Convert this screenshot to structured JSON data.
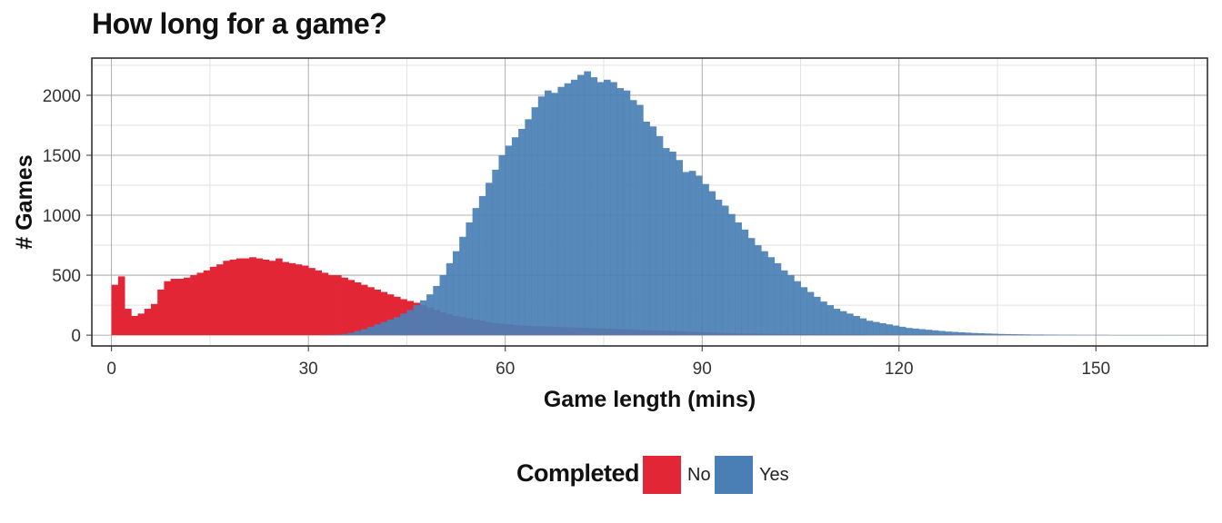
{
  "chart_data": {
    "type": "histogram",
    "title": "How long for a game?",
    "xlabel": "Game length (mins)",
    "ylabel": "# Games",
    "xlim": [
      -3,
      167
    ],
    "ylim": [
      -90,
      2310
    ],
    "x_ticks": [
      0,
      30,
      60,
      90,
      120,
      150
    ],
    "y_ticks": [
      0,
      500,
      1000,
      1500,
      2000
    ],
    "bin_width": 1,
    "grid": true,
    "legend": {
      "title": "Completed",
      "position": "bottom"
    },
    "series": [
      {
        "name": "No",
        "color": "#e32636",
        "x_start": 0,
        "values": [
          420,
          490,
          220,
          160,
          180,
          220,
          260,
          380,
          450,
          470,
          470,
          480,
          500,
          520,
          540,
          570,
          590,
          620,
          630,
          640,
          640,
          650,
          640,
          630,
          620,
          640,
          610,
          600,
          590,
          580,
          560,
          540,
          520,
          500,
          500,
          480,
          460,
          440,
          420,
          400,
          380,
          360,
          340,
          320,
          300,
          285,
          270,
          250,
          230,
          210,
          190,
          175,
          160,
          150,
          140,
          130,
          120,
          110,
          100,
          95,
          90,
          85,
          80,
          78,
          76,
          74,
          72,
          70,
          68,
          66,
          64,
          62,
          60,
          58,
          56,
          54,
          52,
          50,
          48,
          46,
          44,
          42,
          40,
          38,
          36,
          34,
          32,
          30,
          28,
          26,
          24,
          22,
          20,
          18,
          17,
          16,
          15,
          14,
          13,
          12,
          11,
          10,
          10,
          9,
          9,
          8,
          8,
          7,
          7,
          6,
          6,
          6,
          5,
          5,
          5,
          4,
          4,
          4,
          3,
          3,
          3,
          3,
          2,
          2,
          2,
          2,
          2,
          2,
          1,
          1,
          1,
          1,
          1,
          1,
          1,
          1,
          1,
          1,
          1,
          1,
          1,
          1,
          0,
          0,
          0,
          0,
          0,
          0,
          0,
          0,
          0,
          0,
          0,
          0,
          0,
          0,
          0,
          0,
          0,
          0,
          0,
          0,
          0,
          0,
          0,
          0
        ]
      },
      {
        "name": "Yes",
        "color": "#4a7fb5",
        "x_start": 0,
        "values": [
          0,
          0,
          0,
          0,
          0,
          0,
          0,
          0,
          0,
          0,
          0,
          0,
          0,
          0,
          0,
          0,
          0,
          0,
          0,
          0,
          0,
          0,
          0,
          0,
          0,
          0,
          0,
          0,
          0,
          0,
          0,
          0,
          2,
          3,
          5,
          10,
          20,
          35,
          50,
          70,
          90,
          110,
          130,
          150,
          180,
          210,
          250,
          290,
          340,
          410,
          500,
          600,
          700,
          820,
          940,
          1060,
          1160,
          1270,
          1380,
          1500,
          1580,
          1650,
          1720,
          1800,
          1900,
          1990,
          2040,
          2020,
          2070,
          2100,
          2130,
          2170,
          2200,
          2150,
          2110,
          2130,
          2110,
          2060,
          2040,
          1960,
          1920,
          1780,
          1740,
          1660,
          1560,
          1530,
          1460,
          1360,
          1370,
          1330,
          1260,
          1200,
          1130,
          1080,
          1010,
          940,
          880,
          810,
          750,
          700,
          650,
          600,
          540,
          500,
          450,
          400,
          360,
          320,
          280,
          250,
          220,
          200,
          180,
          160,
          140,
          120,
          110,
          100,
          90,
          80,
          70,
          60,
          55,
          50,
          45,
          40,
          35,
          30,
          27,
          24,
          21,
          18,
          16,
          14,
          12,
          10,
          9,
          8,
          7,
          6,
          5,
          5,
          4,
          4,
          3,
          3,
          3,
          2,
          2,
          2,
          2,
          2,
          1,
          1,
          1,
          1,
          1,
          1,
          1,
          1,
          1,
          1,
          1,
          1,
          1,
          1
        ]
      }
    ]
  }
}
